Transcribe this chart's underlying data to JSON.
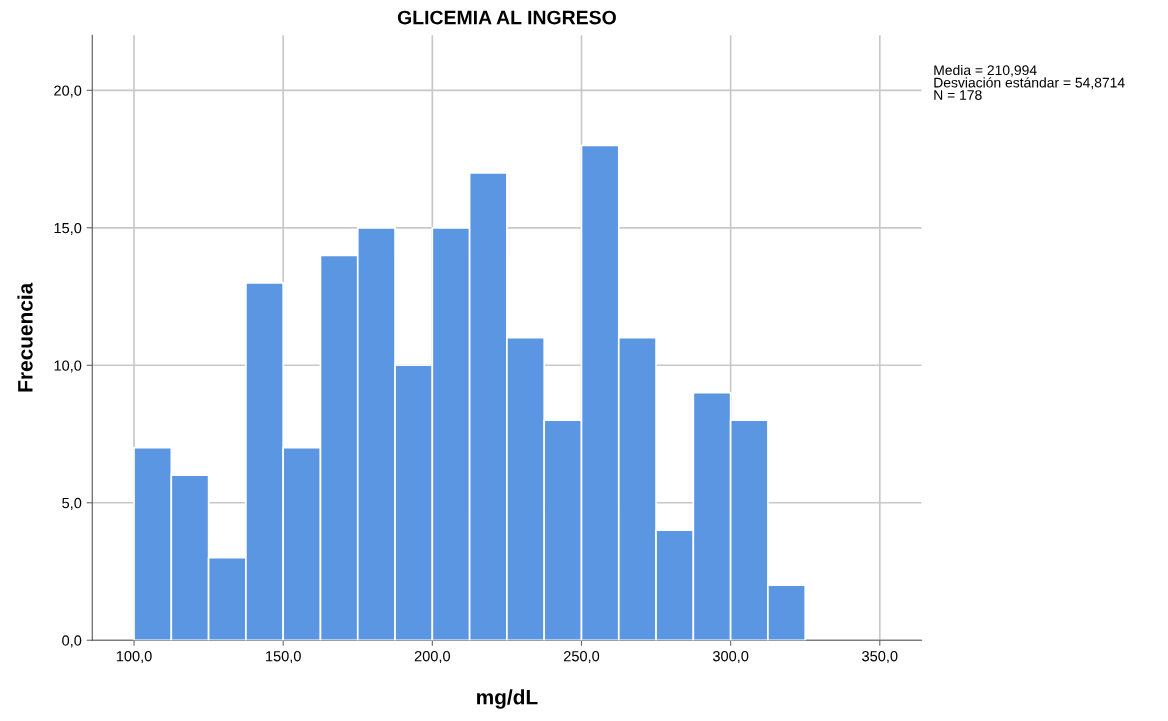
{
  "chart_data": {
    "type": "histogram",
    "title": "GLICEMIA AL INGRESO",
    "xlabel": "mg/dL",
    "ylabel": "Frecuencia",
    "bins": [
      100,
      112.5,
      125,
      137.5,
      150,
      162.5,
      175,
      187.5,
      200,
      212.5,
      225,
      237.5,
      250,
      262.5,
      275,
      287.5,
      300,
      312.5,
      325
    ],
    "values": [
      7,
      6,
      3,
      13,
      7,
      14,
      15,
      10,
      15,
      17,
      11,
      8,
      18,
      11,
      4,
      9,
      8,
      2
    ],
    "color": "#5b96e3",
    "xlim": [
      86,
      364
    ],
    "ylim": [
      0,
      22
    ],
    "xticks": [
      {
        "value": 100,
        "label": "100,0"
      },
      {
        "value": 150,
        "label": "150,0"
      },
      {
        "value": 200,
        "label": "200,0"
      },
      {
        "value": 250,
        "label": "250,0"
      },
      {
        "value": 300,
        "label": "300,0"
      },
      {
        "value": 350,
        "label": "350,0"
      }
    ],
    "yticks": [
      {
        "value": 0,
        "label": "0,0"
      },
      {
        "value": 5,
        "label": "5,0"
      },
      {
        "value": 10,
        "label": "10,0"
      },
      {
        "value": 15,
        "label": "15,0"
      },
      {
        "value": 20,
        "label": "20,0"
      }
    ],
    "grid": true,
    "annotations": [
      "Media = 210,994\nDesviación estándar = 54,8714\nN = 178"
    ]
  }
}
